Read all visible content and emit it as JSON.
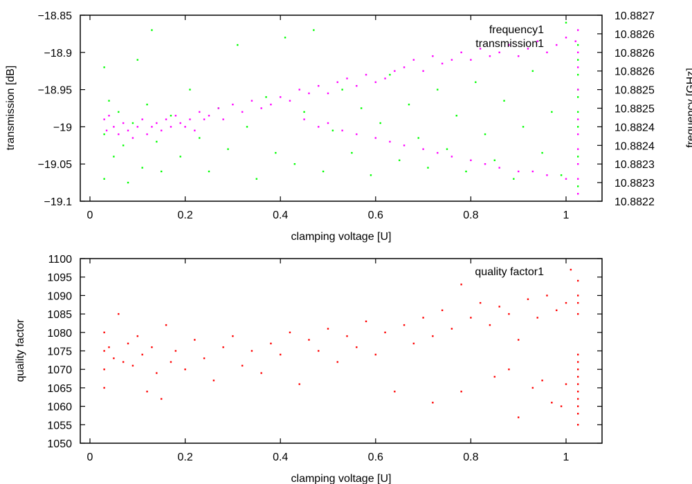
{
  "chart_data": [
    {
      "type": "scatter",
      "xlabel": "clamping voltage [U]",
      "ylabel": "transmission [dB]",
      "y2label": "frequency [GHz]",
      "xlim": [
        -0.02,
        1.06
      ],
      "ylim": [
        -19.1,
        -18.85
      ],
      "y2lim": [
        10.8822,
        10.8827
      ],
      "xticks": [
        0,
        0.2,
        0.4,
        0.6,
        0.8,
        1
      ],
      "xtick_labels": [
        "0",
        "0.2",
        "0.4",
        "0.6",
        "0.8",
        "1"
      ],
      "yticks": [
        -18.85,
        -18.9,
        -18.95,
        -19,
        -19.05,
        -19.1
      ],
      "ytick_labels": [
        "−18.85",
        "−18.9",
        "−18.95",
        "−19",
        "−19.05",
        "−19.1"
      ],
      "y2ticks": [
        10.8827,
        10.88265,
        10.8826,
        10.88255,
        10.8825,
        10.88245,
        10.8824,
        10.88235,
        10.8823,
        10.88225,
        10.8822
      ],
      "y2tick_labels": [
        "10.8827",
        "10.8826",
        "10.8826",
        "10.8826",
        "10.8825",
        "10.8825",
        "10.8824",
        "10.8824",
        "10.8823",
        "10.8823",
        "10.8822"
      ],
      "legend_position": "top-right",
      "series": [
        {
          "name": "frequency1",
          "axis": "y2",
          "color": "#00ff00",
          "points": [
            [
              0.03,
              10.88238
            ],
            [
              0.03,
              10.88226
            ],
            [
              0.03,
              10.88256
            ],
            [
              0.04,
              10.88247
            ],
            [
              0.05,
              10.88232
            ],
            [
              0.06,
              10.88244
            ],
            [
              0.07,
              10.88235
            ],
            [
              0.08,
              10.88225
            ],
            [
              0.09,
              10.88241
            ],
            [
              0.1,
              10.88258
            ],
            [
              0.11,
              10.88229
            ],
            [
              0.12,
              10.88246
            ],
            [
              0.13,
              10.88266
            ],
            [
              0.14,
              10.88236
            ],
            [
              0.15,
              10.88228
            ],
            [
              0.17,
              10.88243
            ],
            [
              0.19,
              10.88232
            ],
            [
              0.21,
              10.8825
            ],
            [
              0.23,
              10.88237
            ],
            [
              0.25,
              10.88228
            ],
            [
              0.27,
              10.88245
            ],
            [
              0.29,
              10.88234
            ],
            [
              0.31,
              10.88262
            ],
            [
              0.33,
              10.8824
            ],
            [
              0.35,
              10.88226
            ],
            [
              0.37,
              10.88248
            ],
            [
              0.39,
              10.88233
            ],
            [
              0.41,
              10.88264
            ],
            [
              0.43,
              10.8823
            ],
            [
              0.45,
              10.88244
            ],
            [
              0.47,
              10.88266
            ],
            [
              0.49,
              10.88228
            ],
            [
              0.51,
              10.88239
            ],
            [
              0.53,
              10.8825
            ],
            [
              0.55,
              10.88233
            ],
            [
              0.57,
              10.88245
            ],
            [
              0.59,
              10.88227
            ],
            [
              0.61,
              10.88241
            ],
            [
              0.63,
              10.88254
            ],
            [
              0.65,
              10.88231
            ],
            [
              0.67,
              10.88246
            ],
            [
              0.69,
              10.88237
            ],
            [
              0.71,
              10.88229
            ],
            [
              0.73,
              10.8825
            ],
            [
              0.75,
              10.88234
            ],
            [
              0.77,
              10.88243
            ],
            [
              0.79,
              10.88228
            ],
            [
              0.81,
              10.88252
            ],
            [
              0.83,
              10.88238
            ],
            [
              0.85,
              10.88231
            ],
            [
              0.87,
              10.88247
            ],
            [
              0.89,
              10.88226
            ],
            [
              0.91,
              10.8824
            ],
            [
              0.93,
              10.88255
            ],
            [
              0.95,
              10.88233
            ],
            [
              0.97,
              10.88244
            ],
            [
              0.99,
              10.88227
            ],
            [
              1.0,
              10.88268
            ],
            [
              1.025,
              10.88224
            ],
            [
              1.025,
              10.88232
            ],
            [
              1.025,
              10.8824
            ],
            [
              1.025,
              10.88244
            ],
            [
              1.025,
              10.88248
            ],
            [
              1.025,
              10.8825
            ],
            [
              1.025,
              10.88254
            ],
            [
              1.025,
              10.88258
            ],
            [
              1.025,
              10.88262
            ]
          ]
        },
        {
          "name": "transmission1",
          "axis": "y",
          "color": "#ff00ff",
          "points": [
            [
              0.03,
              -18.99
            ],
            [
              0.035,
              -19.005
            ],
            [
              0.04,
              -18.985
            ],
            [
              0.05,
              -19.0
            ],
            [
              0.06,
              -19.01
            ],
            [
              0.07,
              -18.995
            ],
            [
              0.08,
              -19.005
            ],
            [
              0.09,
              -19.015
            ],
            [
              0.1,
              -19.0
            ],
            [
              0.11,
              -18.99
            ],
            [
              0.12,
              -19.01
            ],
            [
              0.13,
              -19.0
            ],
            [
              0.14,
              -18.995
            ],
            [
              0.15,
              -19.005
            ],
            [
              0.16,
              -18.99
            ],
            [
              0.17,
              -19.0
            ],
            [
              0.18,
              -18.985
            ],
            [
              0.19,
              -18.995
            ],
            [
              0.2,
              -19.0
            ],
            [
              0.21,
              -18.99
            ],
            [
              0.22,
              -19.005
            ],
            [
              0.23,
              -18.98
            ],
            [
              0.24,
              -18.99
            ],
            [
              0.25,
              -18.985
            ],
            [
              0.27,
              -18.975
            ],
            [
              0.28,
              -18.99
            ],
            [
              0.3,
              -18.97
            ],
            [
              0.32,
              -18.98
            ],
            [
              0.34,
              -18.965
            ],
            [
              0.36,
              -18.975
            ],
            [
              0.38,
              -18.97
            ],
            [
              0.4,
              -18.96
            ],
            [
              0.42,
              -18.965
            ],
            [
              0.44,
              -18.95
            ],
            [
              0.46,
              -18.955
            ],
            [
              0.48,
              -18.945
            ],
            [
              0.5,
              -18.955
            ],
            [
              0.52,
              -18.94
            ],
            [
              0.54,
              -18.935
            ],
            [
              0.56,
              -18.945
            ],
            [
              0.58,
              -18.93
            ],
            [
              0.6,
              -18.94
            ],
            [
              0.62,
              -18.935
            ],
            [
              0.64,
              -18.925
            ],
            [
              0.66,
              -18.92
            ],
            [
              0.68,
              -18.91
            ],
            [
              0.7,
              -18.925
            ],
            [
              0.72,
              -18.905
            ],
            [
              0.74,
              -18.915
            ],
            [
              0.76,
              -18.91
            ],
            [
              0.78,
              -18.9
            ],
            [
              0.8,
              -18.91
            ],
            [
              0.82,
              -18.895
            ],
            [
              0.84,
              -18.905
            ],
            [
              0.86,
              -18.9
            ],
            [
              0.88,
              -18.89
            ],
            [
              0.9,
              -18.905
            ],
            [
              0.92,
              -18.895
            ],
            [
              0.94,
              -18.885
            ],
            [
              0.96,
              -18.9
            ],
            [
              0.98,
              -18.89
            ],
            [
              1.0,
              -18.88
            ],
            [
              1.02,
              -18.885
            ],
            [
              0.45,
              -18.99
            ],
            [
              0.48,
              -19.0
            ],
            [
              0.5,
              -18.995
            ],
            [
              0.53,
              -19.005
            ],
            [
              0.56,
              -19.01
            ],
            [
              0.6,
              -19.015
            ],
            [
              0.63,
              -19.02
            ],
            [
              0.66,
              -19.025
            ],
            [
              0.7,
              -19.03
            ],
            [
              0.73,
              -19.035
            ],
            [
              0.76,
              -19.04
            ],
            [
              0.8,
              -19.045
            ],
            [
              0.83,
              -19.05
            ],
            [
              0.86,
              -19.055
            ],
            [
              0.9,
              -19.06
            ],
            [
              0.93,
              -19.06
            ],
            [
              0.96,
              -19.065
            ],
            [
              1.0,
              -19.07
            ],
            [
              1.025,
              -19.09
            ],
            [
              1.025,
              -19.07
            ],
            [
              1.025,
              -19.05
            ],
            [
              1.025,
              -19.03
            ],
            [
              1.025,
              -19.01
            ],
            [
              1.025,
              -18.99
            ],
            [
              1.025,
              -18.95
            ],
            [
              1.025,
              -18.92
            ],
            [
              1.025,
              -18.9
            ],
            [
              1.025,
              -18.87
            ]
          ]
        }
      ]
    },
    {
      "type": "scatter",
      "xlabel": "clamping voltage [U]",
      "ylabel": "quality factor",
      "xlim": [
        -0.02,
        1.06
      ],
      "ylim": [
        1050,
        1100
      ],
      "xticks": [
        0,
        0.2,
        0.4,
        0.6,
        0.8,
        1
      ],
      "xtick_labels": [
        "0",
        "0.2",
        "0.4",
        "0.6",
        "0.8",
        "1"
      ],
      "yticks": [
        1100,
        1095,
        1090,
        1085,
        1080,
        1075,
        1070,
        1065,
        1060,
        1055,
        1050
      ],
      "ytick_labels": [
        "1100",
        "1095",
        "1090",
        "1085",
        "1080",
        "1075",
        "1070",
        "1065",
        "1060",
        "1055",
        "1050"
      ],
      "legend_position": "top-right",
      "series": [
        {
          "name": "quality factor1",
          "axis": "y",
          "color": "#ff0000",
          "points": [
            [
              0.03,
              1075
            ],
            [
              0.03,
              1070
            ],
            [
              0.03,
              1080
            ],
            [
              0.03,
              1065
            ],
            [
              0.04,
              1076
            ],
            [
              0.05,
              1073
            ],
            [
              0.06,
              1085
            ],
            [
              0.07,
              1072
            ],
            [
              0.08,
              1077
            ],
            [
              0.09,
              1071
            ],
            [
              0.1,
              1079
            ],
            [
              0.11,
              1074
            ],
            [
              0.12,
              1064
            ],
            [
              0.13,
              1076
            ],
            [
              0.14,
              1069
            ],
            [
              0.15,
              1062
            ],
            [
              0.16,
              1082
            ],
            [
              0.17,
              1072
            ],
            [
              0.18,
              1075
            ],
            [
              0.2,
              1070
            ],
            [
              0.22,
              1078
            ],
            [
              0.24,
              1073
            ],
            [
              0.26,
              1067
            ],
            [
              0.28,
              1076
            ],
            [
              0.3,
              1079
            ],
            [
              0.32,
              1071
            ],
            [
              0.34,
              1075
            ],
            [
              0.36,
              1069
            ],
            [
              0.38,
              1077
            ],
            [
              0.4,
              1074
            ],
            [
              0.42,
              1080
            ],
            [
              0.44,
              1066
            ],
            [
              0.46,
              1078
            ],
            [
              0.48,
              1075
            ],
            [
              0.5,
              1081
            ],
            [
              0.52,
              1072
            ],
            [
              0.54,
              1079
            ],
            [
              0.56,
              1076
            ],
            [
              0.58,
              1083
            ],
            [
              0.6,
              1074
            ],
            [
              0.62,
              1080
            ],
            [
              0.64,
              1064
            ],
            [
              0.66,
              1082
            ],
            [
              0.68,
              1077
            ],
            [
              0.7,
              1084
            ],
            [
              0.72,
              1079
            ],
            [
              0.74,
              1086
            ],
            [
              0.76,
              1081
            ],
            [
              0.78,
              1093
            ],
            [
              0.8,
              1084
            ],
            [
              0.82,
              1088
            ],
            [
              0.84,
              1082
            ],
            [
              0.86,
              1087
            ],
            [
              0.88,
              1085
            ],
            [
              0.9,
              1078
            ],
            [
              0.92,
              1089
            ],
            [
              0.94,
              1084
            ],
            [
              0.96,
              1090
            ],
            [
              0.98,
              1086
            ],
            [
              1.0,
              1088
            ],
            [
              1.01,
              1097
            ],
            [
              0.72,
              1061
            ],
            [
              0.78,
              1064
            ],
            [
              0.85,
              1068
            ],
            [
              0.88,
              1070
            ],
            [
              0.9,
              1057
            ],
            [
              0.93,
              1065
            ],
            [
              0.95,
              1067
            ],
            [
              0.97,
              1061
            ],
            [
              0.99,
              1060
            ],
            [
              1.0,
              1066
            ],
            [
              1.025,
              1055
            ],
            [
              1.025,
              1058
            ],
            [
              1.025,
              1060
            ],
            [
              1.025,
              1062
            ],
            [
              1.025,
              1064
            ],
            [
              1.025,
              1066
            ],
            [
              1.025,
              1068
            ],
            [
              1.025,
              1070
            ],
            [
              1.025,
              1072
            ],
            [
              1.025,
              1074
            ],
            [
              1.025,
              1085
            ],
            [
              1.025,
              1088
            ],
            [
              1.025,
              1090
            ],
            [
              1.025,
              1094
            ]
          ]
        }
      ]
    }
  ]
}
